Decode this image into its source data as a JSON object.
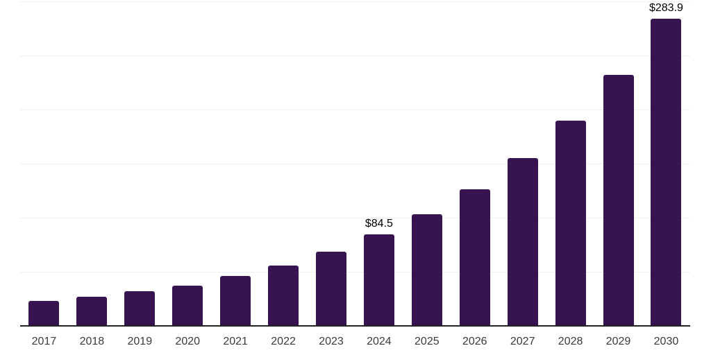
{
  "chart_data": {
    "type": "bar",
    "title": "",
    "xlabel": "",
    "ylabel": "",
    "categories": [
      "2017",
      "2018",
      "2019",
      "2020",
      "2021",
      "2022",
      "2023",
      "2024",
      "2025",
      "2026",
      "2027",
      "2028",
      "2029",
      "2030"
    ],
    "values": [
      23.2,
      27.0,
      32.2,
      37.5,
      45.9,
      55.8,
      68.6,
      84.5,
      103.4,
      126.6,
      154.9,
      189.6,
      232.1,
      283.9
    ],
    "data_labels": {
      "2024": "$84.5",
      "2030": "$283.9"
    },
    "ylim": [
      0,
      300
    ],
    "grid_step": 50,
    "grid": true,
    "legend": false,
    "colors": {
      "bar": "#371450",
      "gridline": "#efefef",
      "axis_line": "#222222",
      "x_label": "#3a3a3a",
      "annotation": "#000000",
      "background": "#ffffff"
    }
  }
}
